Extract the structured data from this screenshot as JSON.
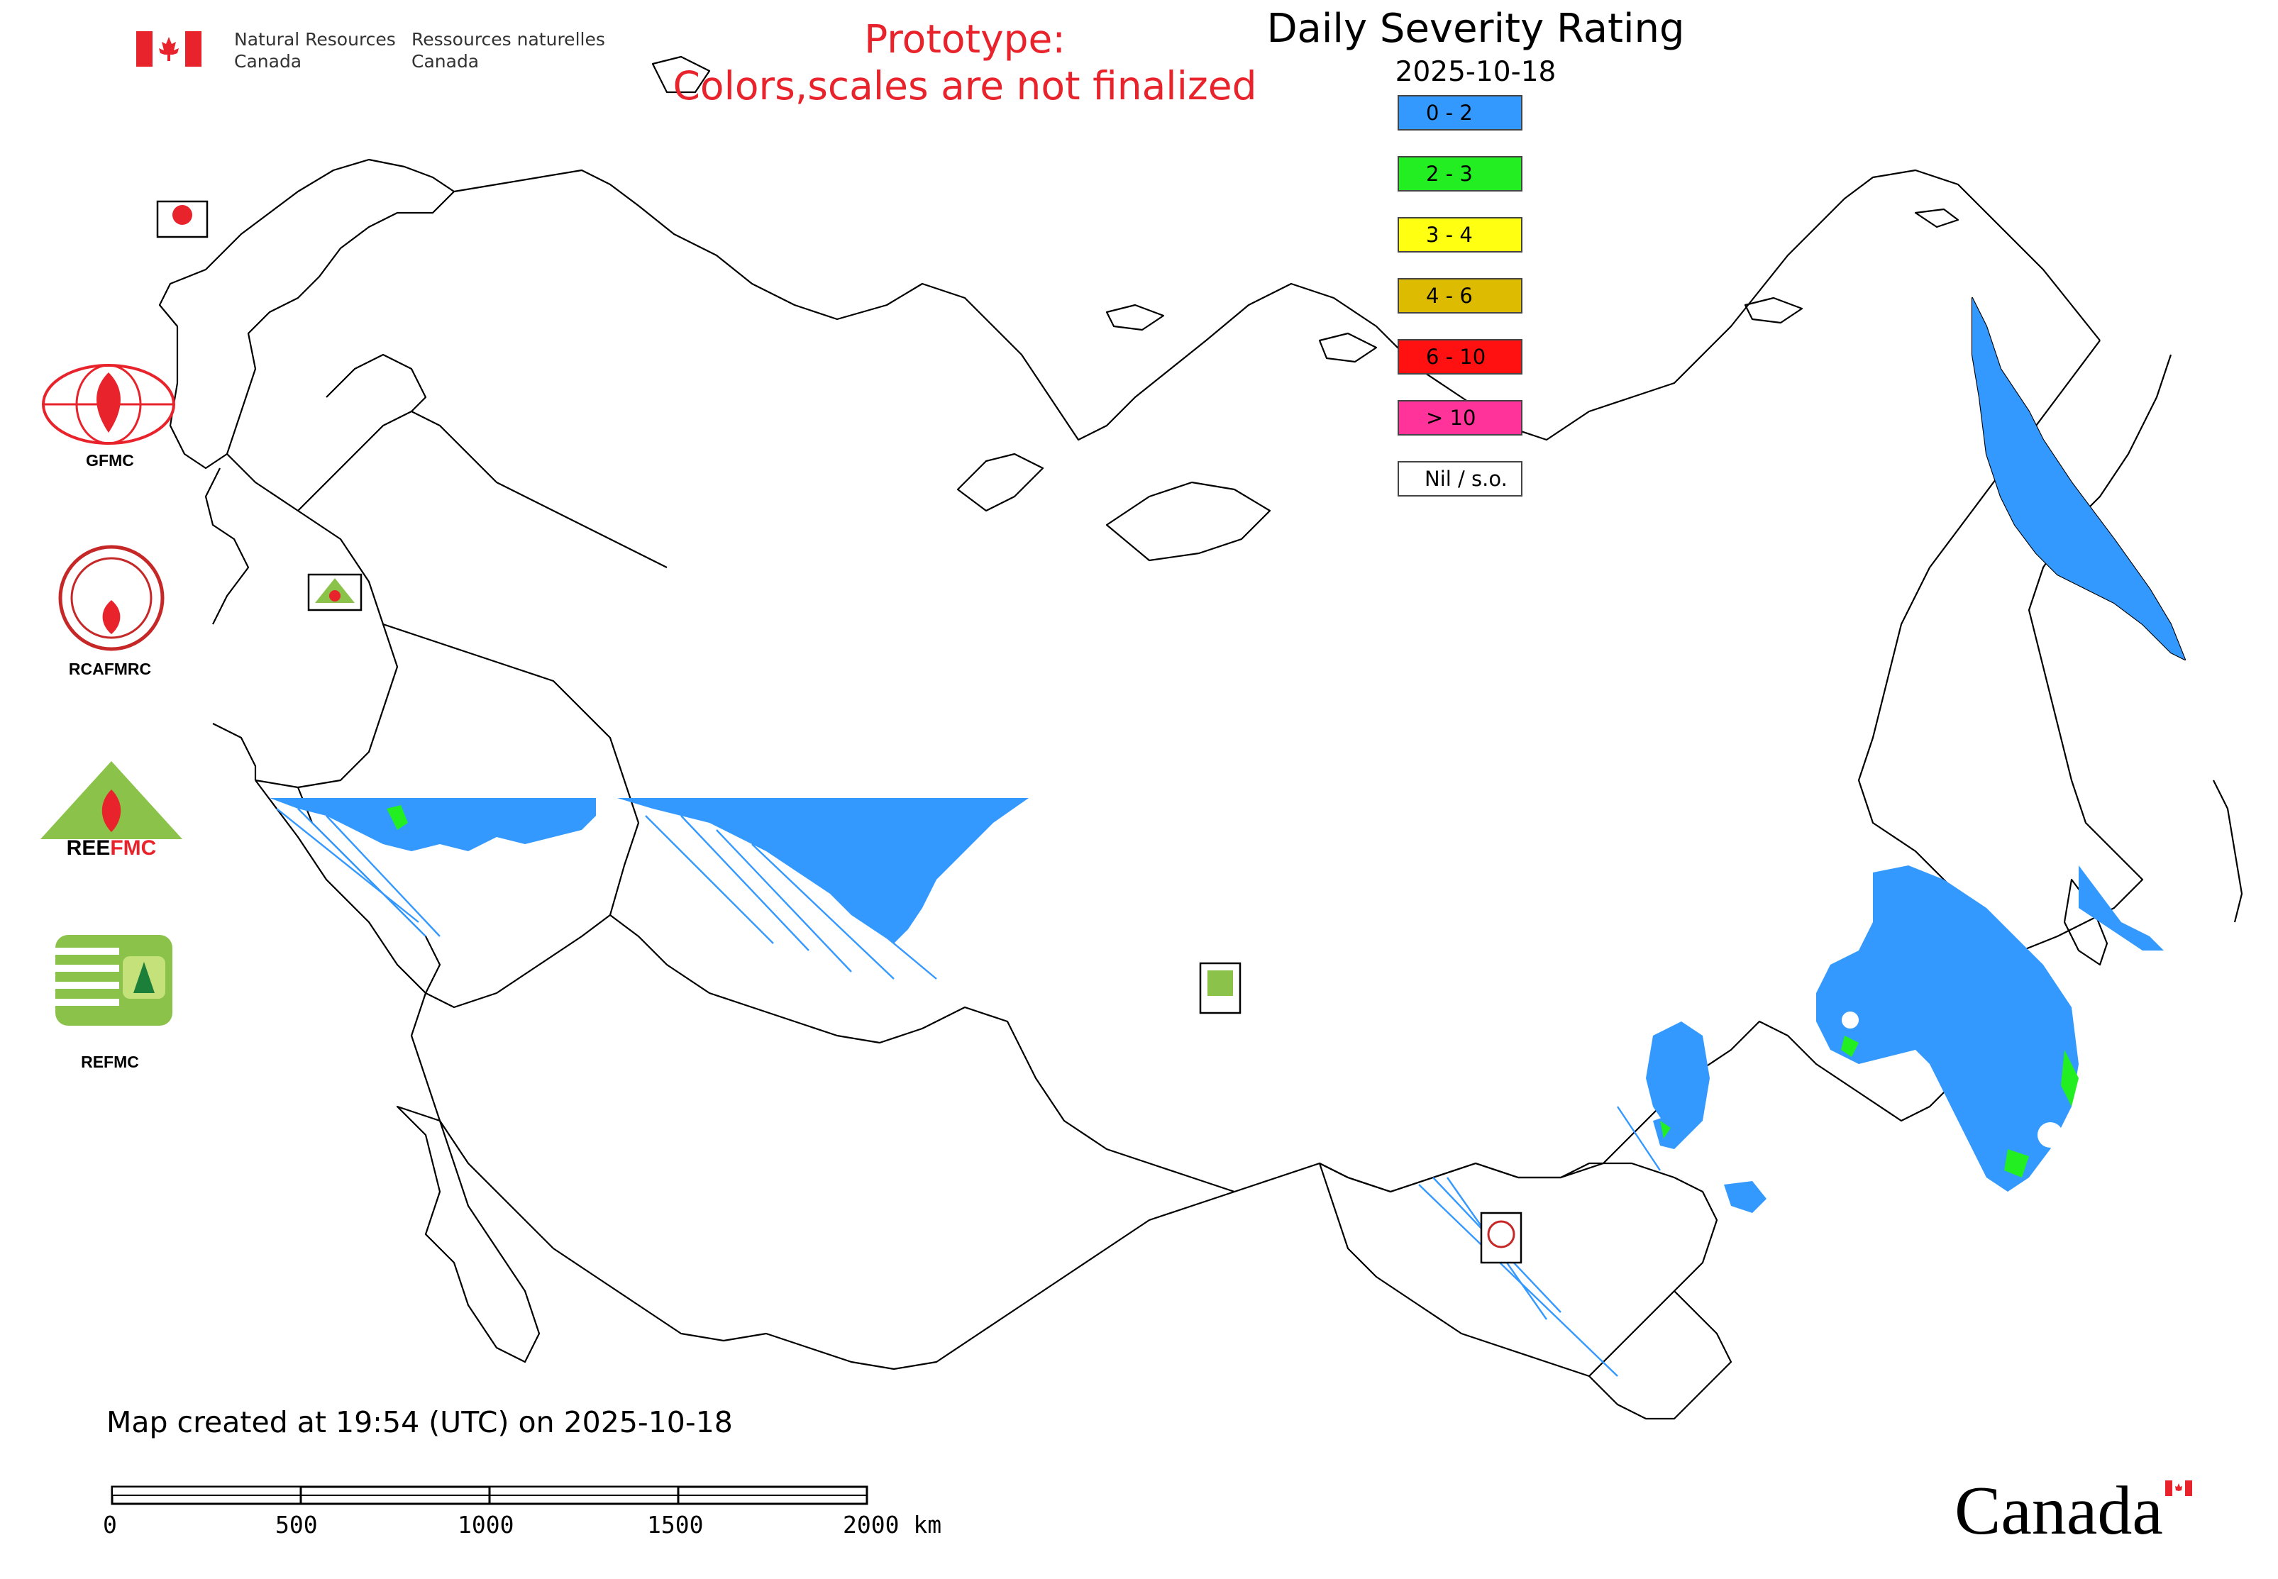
{
  "header": {
    "org_en_line1": "Natural Resources",
    "org_en_line2": "Canada",
    "org_fr_line1": "Ressources naturelles",
    "org_fr_line2": "Canada",
    "prototype_line1": "Prototype:",
    "prototype_line2": "Colors,scales are not finalized",
    "prototype_color": "#e8232b"
  },
  "map": {
    "title": "Daily Severity Rating",
    "date": "2025-10-18"
  },
  "legend": [
    {
      "label": "0 - 2",
      "color": "#3399ff"
    },
    {
      "label": "2 - 3",
      "color": "#22ee22"
    },
    {
      "label": "3 - 4",
      "color": "#ffff11"
    },
    {
      "label": "4 - 6",
      "color": "#ddbb00"
    },
    {
      "label": "6 - 10",
      "color": "#ff1111"
    },
    {
      "label": "> 10",
      "color": "#ff3399"
    },
    {
      "label": "Nil / s.o.",
      "color": "#ffffff"
    }
  ],
  "logos": [
    {
      "label": "GFMC",
      "icon": "gfmc-logo"
    },
    {
      "label": "RCAFMRC",
      "icon": "rcafmrc-logo"
    },
    {
      "label": "REEFMC",
      "icon": "reefmc-logo"
    },
    {
      "label": "REFMC",
      "icon": "refmc-logo"
    }
  ],
  "map_markers": {
    "gfmc": "GFMC",
    "reefmc": "REEFMC",
    "refmc": "REFMC",
    "rcafmrc": "RCAFMRC"
  },
  "footer": {
    "created": "Map created at 19:54 (UTC) on 2025-10-18",
    "scale_labels": [
      "0",
      "500",
      "1000",
      "1500",
      "2000 km"
    ],
    "wordmark": "Canada"
  }
}
